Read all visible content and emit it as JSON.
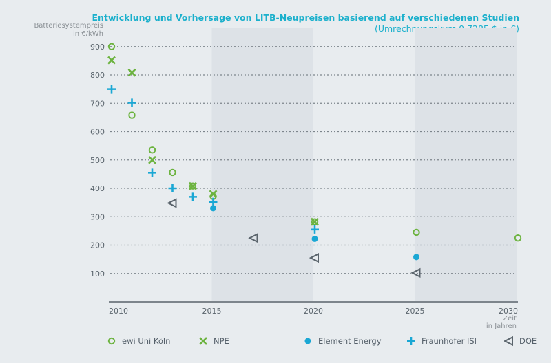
{
  "chart_data": {
    "type": "scatter",
    "title": "Entwicklung und Vorhersage von LITB-Neupreisen basierend auf verschiedenen Studien",
    "subtitle": "(Umrechnungskurs 0,7285 $ in €)",
    "ylabel": [
      "Batteriesystempreis",
      "in €/kWh"
    ],
    "xlabel": [
      "Zeit",
      "in Jahren"
    ],
    "xlim": [
      2010,
      2030
    ],
    "ylim": [
      0,
      900
    ],
    "xticks": [
      "2010",
      "2015",
      "2020",
      "2025",
      "2030"
    ],
    "yticks": [
      "100",
      "200",
      "300",
      "400",
      "500",
      "600",
      "700",
      "800",
      "900"
    ],
    "grid": "horizontal dotted",
    "shaded_ranges": [
      [
        2015,
        2020
      ],
      [
        2025,
        2030
      ]
    ],
    "legend_position": "bottom",
    "series": [
      {
        "name": "ewi Uni Köln",
        "marker": "circle-open",
        "color": "#6cb33f",
        "x": [
          2010,
          2011,
          2012,
          2013,
          2014,
          2015,
          2020,
          2025,
          2030
        ],
        "y": [
          900,
          658,
          535,
          456,
          408,
          372,
          282,
          245,
          225
        ]
      },
      {
        "name": "NPE",
        "marker": "x",
        "color": "#6cb33f",
        "x": [
          2010,
          2011,
          2012,
          2014,
          2015,
          2020
        ],
        "y": [
          852,
          808,
          500,
          408,
          380,
          282
        ]
      },
      {
        "name": "Element Energy",
        "marker": "dot",
        "color": "#1aa7d4",
        "x": [
          2015,
          2020,
          2025
        ],
        "y": [
          330,
          222,
          158
        ]
      },
      {
        "name": "Fraunhofer ISI",
        "marker": "plus",
        "color": "#1aa7d4",
        "x": [
          2010,
          2011,
          2012,
          2013,
          2014,
          2015,
          2020
        ],
        "y": [
          750,
          702,
          455,
          400,
          370,
          352,
          255
        ]
      },
      {
        "name": "DOE",
        "marker": "triangle-left",
        "color": "#5a646c",
        "x": [
          2013,
          2017,
          2020,
          2025
        ],
        "y": [
          348,
          225,
          155,
          102
        ]
      }
    ]
  }
}
